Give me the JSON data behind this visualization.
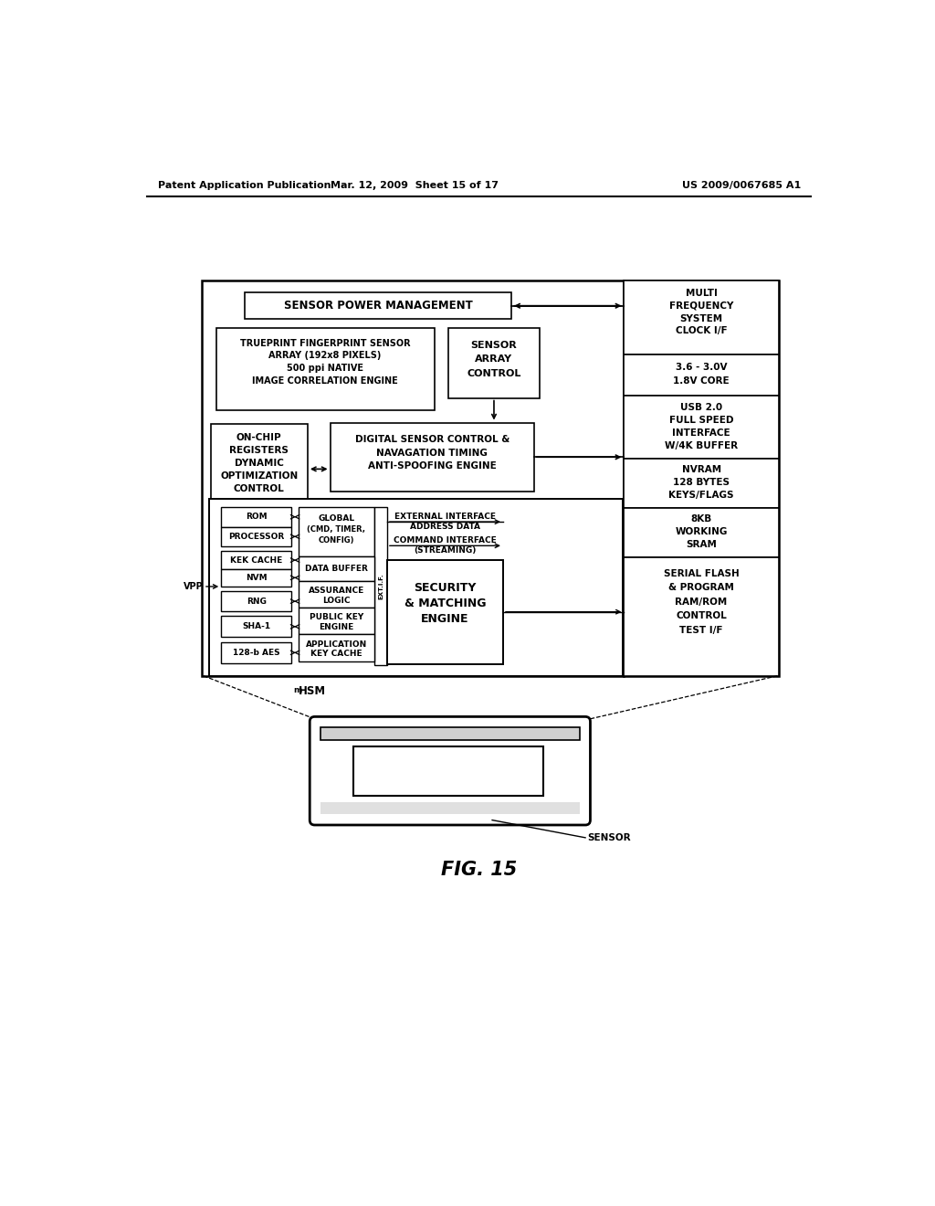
{
  "header_left": "Patent Application Publication",
  "header_mid": "Mar. 12, 2009  Sheet 15 of 17",
  "header_right": "US 2009/0067685 A1",
  "figure_label": "FIG. 15",
  "bg_color": "#ffffff",
  "line_color": "#000000"
}
